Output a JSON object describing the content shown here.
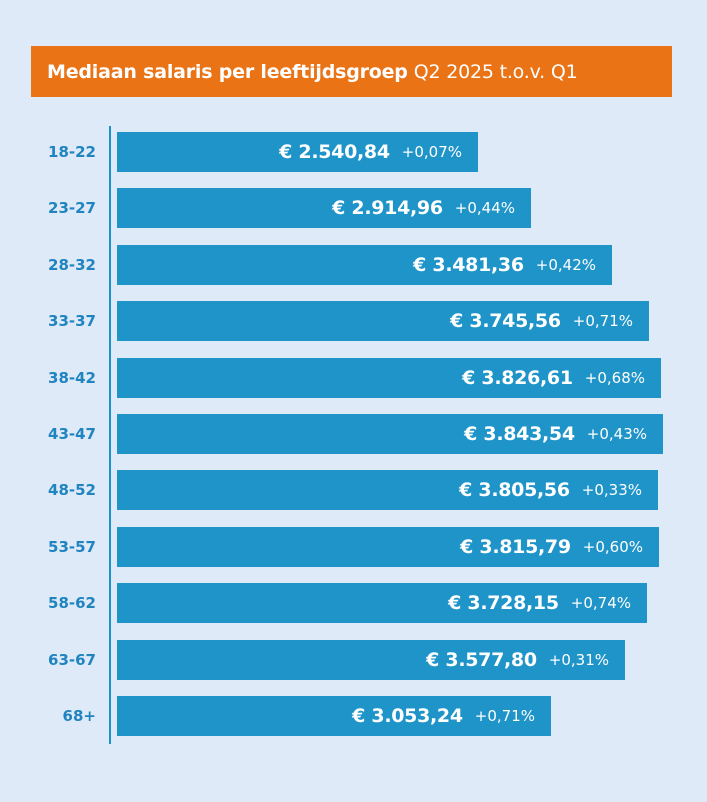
{
  "header": {
    "title_bold": "Mediaan salaris per leeftijdsgroep",
    "title_light": "Q2 2025 t.o.v. Q1"
  },
  "chart_data": {
    "type": "bar",
    "orientation": "horizontal",
    "title": "Mediaan salaris per leeftijdsgroep Q2 2025 t.o.v. Q1",
    "categories": [
      "18-22",
      "23-27",
      "28-32",
      "33-37",
      "38-42",
      "43-47",
      "48-52",
      "53-57",
      "58-62",
      "63-67",
      "68+"
    ],
    "values": [
      2540.84,
      2914.96,
      3481.36,
      3745.56,
      3826.61,
      3843.54,
      3805.56,
      3815.79,
      3728.15,
      3577.8,
      3053.24
    ],
    "value_labels": [
      "€ 2.540,84",
      "€ 2.914,96",
      "€ 3.481,36",
      "€ 3.745,56",
      "€ 3.826,61",
      "€ 3.843,54",
      "€ 3.805,56",
      "€ 3.815,79",
      "€ 3.728,15",
      "€ 3.577,80",
      "€ 3.053,24"
    ],
    "change_labels": [
      "+0,07%",
      "+0,44%",
      "+0,42%",
      "+0,71%",
      "+0,68%",
      "+0,43%",
      "+0,33%",
      "+0,60%",
      "+0,74%",
      "+0,31%",
      "+0,71%"
    ],
    "xlim": [
      0,
      3843.54
    ],
    "grid": false,
    "colors": {
      "bar": "#1e94c9",
      "header": "#ea7315",
      "background": "#dfeaf8",
      "category_label": "#1f84bf"
    }
  }
}
